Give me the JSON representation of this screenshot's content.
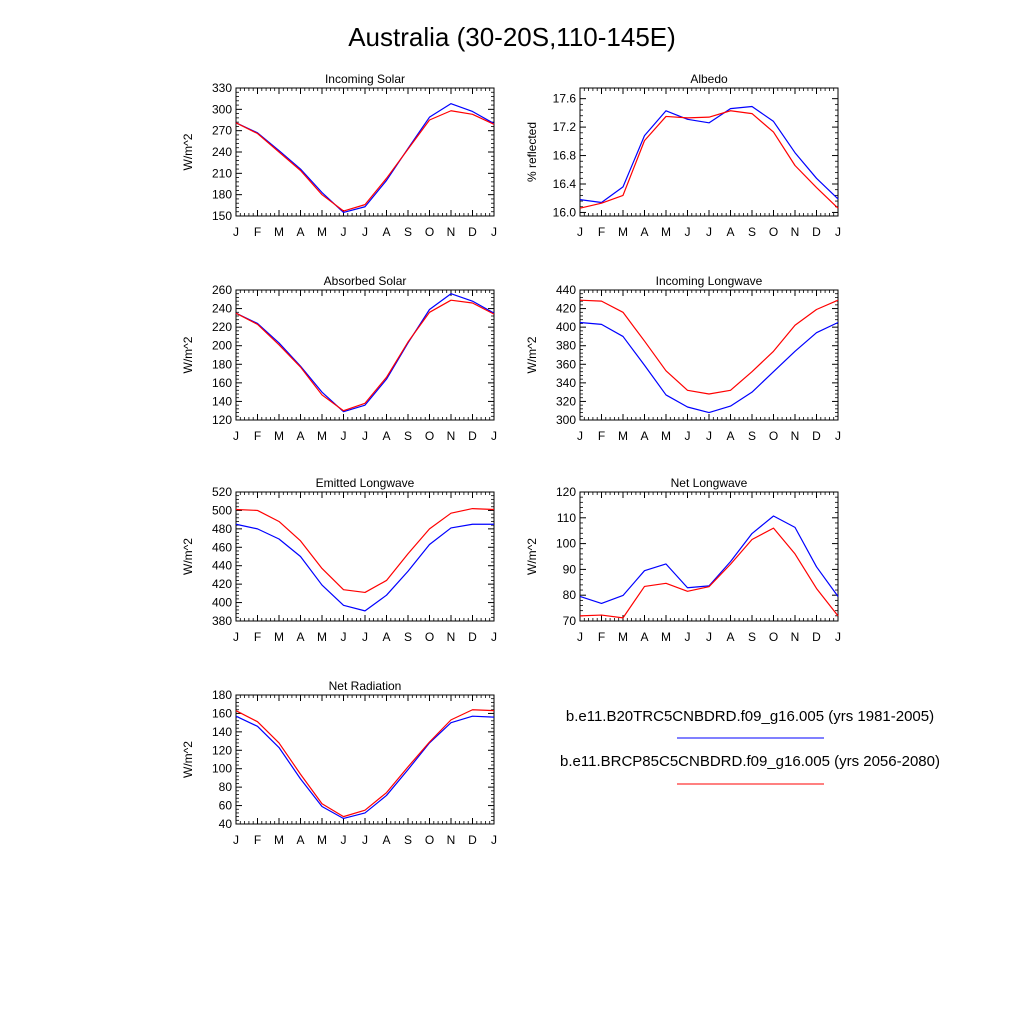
{
  "title": "Australia (30-20S,110-145E)",
  "colors": {
    "series_1": "#0000ff",
    "series_2": "#ff0000"
  },
  "legend": [
    {
      "label": "b.e11.B20TRC5CNBDRD.f09_g16.005 (yrs 1981-2005)",
      "color": "#0000ff"
    },
    {
      "label": "b.e11.BRCP85C5CNBDRD.f09_g16.005 (yrs 2056-2080)",
      "color": "#ff0000"
    }
  ],
  "chart_data": [
    {
      "type": "line",
      "title": "Incoming Solar",
      "ylabel": "W/m^2",
      "xlabel": "",
      "x": [
        "J",
        "F",
        "M",
        "A",
        "M",
        "J",
        "J",
        "A",
        "S",
        "O",
        "N",
        "D",
        "J"
      ],
      "ylim": [
        150,
        330
      ],
      "yticks": [
        150,
        180,
        210,
        240,
        270,
        300,
        330
      ],
      "grid": false,
      "series": [
        {
          "name": "b.e11.B20TRC5CNBDRD.f09_g16.005 (yrs 1981-2005)",
          "color": "#0000ff",
          "values": [
            281,
            267,
            242,
            216,
            183,
            155,
            163,
            200,
            245,
            289,
            308,
            297,
            280
          ]
        },
        {
          "name": "b.e11.BRCP85C5CNBDRD.f09_g16.005 (yrs 2056-2080)",
          "color": "#ff0000",
          "values": [
            281,
            266,
            240,
            214,
            180,
            157,
            166,
            203,
            244,
            285,
            298,
            293,
            279
          ]
        }
      ]
    },
    {
      "type": "line",
      "title": "Albedo",
      "ylabel": "% reflected",
      "xlabel": "",
      "x": [
        "J",
        "F",
        "M",
        "A",
        "M",
        "J",
        "J",
        "A",
        "S",
        "O",
        "N",
        "D",
        "J"
      ],
      "ylim": [
        15.95,
        17.75
      ],
      "yticks": [
        16.0,
        16.4,
        16.8,
        17.2,
        17.6
      ],
      "ytick_labels": [
        "16.0",
        "16.4",
        "16.8",
        "17.2",
        "17.6"
      ],
      "grid": false,
      "series": [
        {
          "name": "b.e11.B20TRC5CNBDRD.f09_g16.005 (yrs 1981-2005)",
          "color": "#0000ff",
          "values": [
            16.18,
            16.14,
            16.36,
            17.08,
            17.43,
            17.31,
            17.26,
            17.46,
            17.49,
            17.28,
            16.84,
            16.48,
            16.19
          ]
        },
        {
          "name": "b.e11.BRCP85C5CNBDRD.f09_g16.005 (yrs 2056-2080)",
          "color": "#ff0000",
          "values": [
            16.06,
            16.13,
            16.24,
            17.01,
            17.35,
            17.33,
            17.34,
            17.43,
            17.39,
            17.13,
            16.66,
            16.35,
            16.06
          ]
        }
      ]
    },
    {
      "type": "line",
      "title": "Absorbed Solar",
      "ylabel": "W/m^2",
      "xlabel": "",
      "x": [
        "J",
        "F",
        "M",
        "A",
        "M",
        "J",
        "J",
        "A",
        "S",
        "O",
        "N",
        "D",
        "J"
      ],
      "ylim": [
        120,
        260
      ],
      "yticks": [
        120,
        140,
        160,
        180,
        200,
        220,
        240,
        260
      ],
      "grid": false,
      "series": [
        {
          "name": "b.e11.B20TRC5CNBDRD.f09_g16.005 (yrs 1981-2005)",
          "color": "#0000ff",
          "values": [
            235,
            224,
            203,
            178,
            150,
            129,
            136,
            164,
            203,
            239,
            256,
            248,
            235
          ]
        },
        {
          "name": "b.e11.BRCP85C5CNBDRD.f09_g16.005 (yrs 2056-2080)",
          "color": "#ff0000",
          "values": [
            235,
            223,
            201,
            177,
            147,
            130,
            138,
            166,
            204,
            236,
            249,
            246,
            234
          ]
        }
      ]
    },
    {
      "type": "line",
      "title": "Incoming Longwave",
      "ylabel": "W/m^2",
      "xlabel": "",
      "x": [
        "J",
        "F",
        "M",
        "A",
        "M",
        "J",
        "J",
        "A",
        "S",
        "O",
        "N",
        "D",
        "J"
      ],
      "ylim": [
        300,
        440
      ],
      "yticks": [
        300,
        320,
        340,
        360,
        380,
        400,
        420,
        440
      ],
      "grid": false,
      "series": [
        {
          "name": "b.e11.B20TRC5CNBDRD.f09_g16.005 (yrs 1981-2005)",
          "color": "#0000ff",
          "values": [
            405,
            403,
            390,
            359,
            327,
            314,
            308,
            315,
            330,
            352,
            374,
            394,
            405
          ]
        },
        {
          "name": "b.e11.BRCP85C5CNBDRD.f09_g16.005 (yrs 2056-2080)",
          "color": "#ff0000",
          "values": [
            429,
            428,
            416,
            385,
            353,
            332,
            328,
            332,
            352,
            374,
            402,
            419,
            429
          ]
        }
      ]
    },
    {
      "type": "line",
      "title": "Emitted Longwave",
      "ylabel": "W/m^2",
      "xlabel": "",
      "x": [
        "J",
        "F",
        "M",
        "A",
        "M",
        "J",
        "J",
        "A",
        "S",
        "O",
        "N",
        "D",
        "J"
      ],
      "ylim": [
        380,
        520
      ],
      "yticks": [
        380,
        400,
        420,
        440,
        460,
        480,
        500,
        520
      ],
      "grid": false,
      "series": [
        {
          "name": "b.e11.B20TRC5CNBDRD.f09_g16.005 (yrs 1981-2005)",
          "color": "#0000ff",
          "values": [
            485,
            480,
            469,
            450,
            419,
            397,
            391,
            408,
            434,
            463,
            481,
            485,
            485
          ]
        },
        {
          "name": "b.e11.BRCP85C5CNBDRD.f09_g16.005 (yrs 2056-2080)",
          "color": "#ff0000",
          "values": [
            501,
            500,
            488,
            467,
            437,
            414,
            411,
            424,
            453,
            480,
            497,
            502,
            501
          ]
        }
      ]
    },
    {
      "type": "line",
      "title": "Net Longwave",
      "ylabel": "W/m^2",
      "xlabel": "",
      "x": [
        "J",
        "F",
        "M",
        "A",
        "M",
        "J",
        "J",
        "A",
        "S",
        "O",
        "N",
        "D",
        "J"
      ],
      "ylim": [
        70,
        120
      ],
      "yticks": [
        70,
        80,
        90,
        100,
        110,
        120
      ],
      "grid": false,
      "series": [
        {
          "name": "b.e11.B20TRC5CNBDRD.f09_g16.005 (yrs 1981-2005)",
          "color": "#0000ff",
          "values": [
            79.5,
            76.8,
            79.9,
            89.5,
            92.1,
            82.9,
            83.6,
            93,
            103.9,
            110.7,
            106.3,
            91,
            79.5
          ]
        },
        {
          "name": "b.e11.BRCP85C5CNBDRD.f09_g16.005 (yrs 2056-2080)",
          "color": "#ff0000",
          "values": [
            72,
            72.3,
            71.2,
            83.4,
            84.6,
            81.5,
            83.3,
            92,
            101.6,
            106,
            96,
            82.6,
            72
          ]
        }
      ]
    },
    {
      "type": "line",
      "title": "Net Radiation",
      "ylabel": "W/m^2",
      "xlabel": "",
      "x": [
        "J",
        "F",
        "M",
        "A",
        "M",
        "J",
        "J",
        "A",
        "S",
        "O",
        "N",
        "D",
        "J"
      ],
      "ylim": [
        40,
        180
      ],
      "yticks": [
        40,
        60,
        80,
        100,
        120,
        140,
        160,
        180
      ],
      "grid": false,
      "series": [
        {
          "name": "b.e11.B20TRC5CNBDRD.f09_g16.005 (yrs 1981-2005)",
          "color": "#0000ff",
          "values": [
            157,
            146,
            123,
            89,
            59,
            46,
            52,
            71,
            99,
            128,
            150,
            157,
            156
          ]
        },
        {
          "name": "b.e11.BRCP85C5CNBDRD.f09_g16.005 (yrs 2056-2080)",
          "color": "#ff0000",
          "values": [
            163,
            151,
            128,
            94,
            62,
            48,
            55,
            74,
            102,
            129,
            153,
            164,
            163
          ]
        }
      ]
    }
  ]
}
